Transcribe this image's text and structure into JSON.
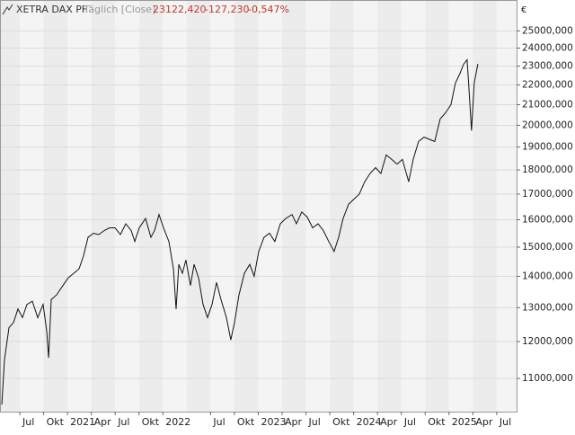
{
  "chart_data": {
    "type": "line",
    "title": "XETRA DAX PF",
    "subtitle": "Täglich [Close]",
    "last_value": "23122,420",
    "change": "-127,230",
    "change_percent": "-0,547%",
    "currency": "€",
    "log_scale": true,
    "grid": true,
    "xlim": [
      3.51,
      68.5
    ],
    "xticks": [
      {
        "value": 6,
        "label": "Jul"
      },
      {
        "value": 9,
        "label": "Okt"
      },
      {
        "value": 12,
        "label": "2021"
      },
      {
        "value": 15,
        "label": "Apr"
      },
      {
        "value": 18,
        "label": "Jul"
      },
      {
        "value": 21,
        "label": "Okt"
      },
      {
        "value": 24,
        "label": "2022"
      },
      {
        "value": 30,
        "label": "Jul"
      },
      {
        "value": 33,
        "label": "Okt"
      },
      {
        "value": 36,
        "label": "2023"
      },
      {
        "value": 39,
        "label": "Apr"
      },
      {
        "value": 42,
        "label": "Jul"
      },
      {
        "value": 45,
        "label": "Okt"
      },
      {
        "value": 48,
        "label": "2024"
      },
      {
        "value": 51,
        "label": "Apr"
      },
      {
        "value": 54,
        "label": "Jul"
      },
      {
        "value": 57,
        "label": "Okt"
      },
      {
        "value": 60,
        "label": "2025"
      },
      {
        "value": 63,
        "label": "Apr"
      },
      {
        "value": 66,
        "label": "Jul"
      }
    ],
    "ylim": [
      10170,
      26890
    ],
    "yticks": [
      {
        "value": 11000,
        "label": "11000,000"
      },
      {
        "value": 12000,
        "label": "12000,000"
      },
      {
        "value": 13000,
        "label": "13000,000"
      },
      {
        "value": 14000,
        "label": "14000,000"
      },
      {
        "value": 15000,
        "label": "15000,000"
      },
      {
        "value": 16000,
        "label": "16000,000"
      },
      {
        "value": 17000,
        "label": "17000,000"
      },
      {
        "value": 18000,
        "label": "18000,000"
      },
      {
        "value": 19000,
        "label": "19000,000"
      },
      {
        "value": 20000,
        "label": "20000,000"
      },
      {
        "value": 21000,
        "label": "21000,000"
      },
      {
        "value": 22000,
        "label": "22000,000"
      },
      {
        "value": 23000,
        "label": "23000,000"
      },
      {
        "value": 24000,
        "label": "24000,000"
      },
      {
        "value": 25000,
        "label": "25000,000"
      }
    ],
    "series": [
      {
        "name": "XETRA DAX PF",
        "color": "#111111",
        "x": [
          3.74,
          4.08,
          4.64,
          5.21,
          5.77,
          6.34,
          6.9,
          7.58,
          8.26,
          8.94,
          9.39,
          9.62,
          9.95,
          10.63,
          11.42,
          12.1,
          12.78,
          13.46,
          14.02,
          14.59,
          15.27,
          15.94,
          16.62,
          17.3,
          17.98,
          18.66,
          19.33,
          20.01,
          20.46,
          21.03,
          21.82,
          22.5,
          22.95,
          23.51,
          24.08,
          24.76,
          25.32,
          25.66,
          26.0,
          26.45,
          26.9,
          27.47,
          27.92,
          28.49,
          29.05,
          29.62,
          30.18,
          30.75,
          31.31,
          31.99,
          32.55,
          33.01,
          33.57,
          34.25,
          34.93,
          35.49,
          36.06,
          36.73,
          37.41,
          38.09,
          38.77,
          39.45,
          40.24,
          40.8,
          41.48,
          42.16,
          42.84,
          43.52,
          44.19,
          44.87,
          45.55,
          46.11,
          46.68,
          47.36,
          48.03,
          48.71,
          49.39,
          50.07,
          50.75,
          51.42,
          52.1,
          52.79,
          53.47,
          54.14,
          54.93,
          55.49,
          56.17,
          56.85,
          57.53,
          58.2,
          58.88,
          59.56,
          60.24,
          60.8,
          61.37,
          61.82,
          62.27,
          62.49,
          62.83,
          63.17,
          63.63
        ],
        "values": [
          10340,
          11500,
          12400,
          12550,
          12960,
          12700,
          13100,
          13200,
          12700,
          13100,
          12300,
          11550,
          13250,
          13400,
          13700,
          13950,
          14100,
          14250,
          14700,
          15350,
          15500,
          15450,
          15600,
          15700,
          15700,
          15450,
          15850,
          15600,
          15200,
          15700,
          16050,
          15350,
          15600,
          16200,
          15700,
          15200,
          14250,
          12960,
          14400,
          14100,
          14550,
          13700,
          14400,
          13950,
          13100,
          12700,
          13100,
          13800,
          13250,
          12700,
          12050,
          12550,
          13400,
          14100,
          14400,
          14000,
          14850,
          15350,
          15500,
          15200,
          15850,
          16050,
          16200,
          15850,
          16300,
          16100,
          15700,
          15850,
          15600,
          15200,
          14850,
          15350,
          16050,
          16600,
          16800,
          17000,
          17500,
          17850,
          18100,
          17850,
          18650,
          18450,
          18250,
          18450,
          17500,
          18450,
          19250,
          19450,
          19350,
          19250,
          20300,
          20600,
          21000,
          22100,
          22600,
          23100,
          23350,
          21950,
          19750,
          22100,
          23122.42
        ]
      }
    ]
  }
}
